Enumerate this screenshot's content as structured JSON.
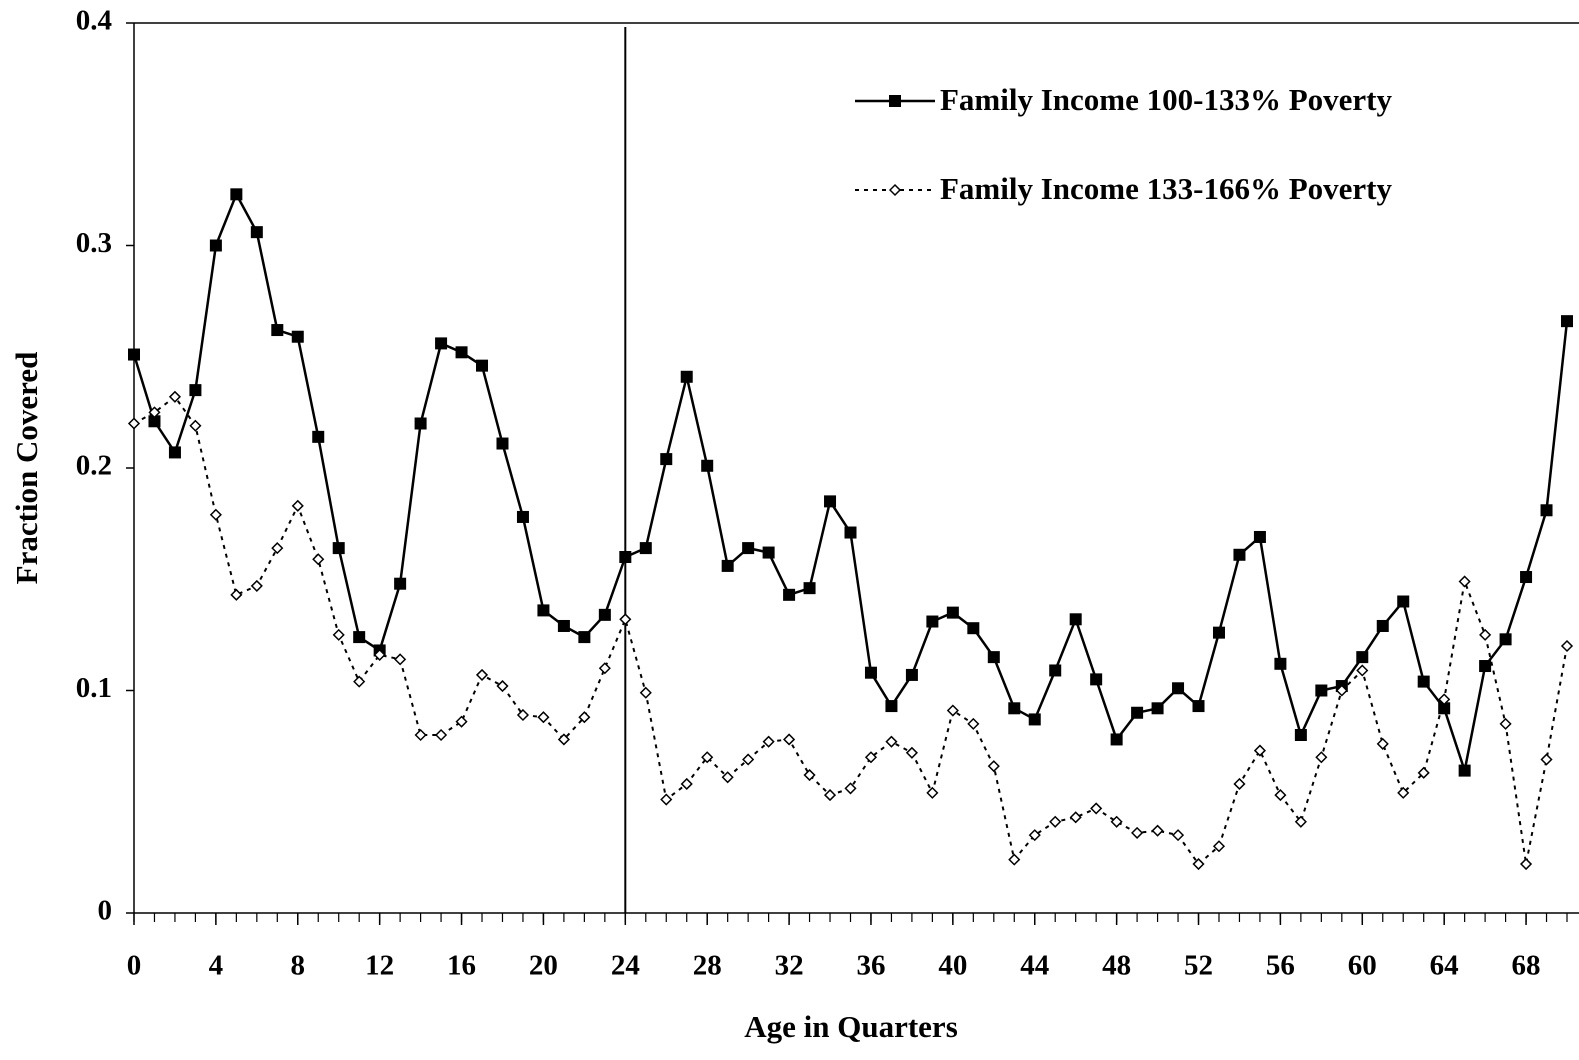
{
  "chart_data": {
    "type": "line",
    "y_label": "Fraction Covered",
    "x_label": "Age in Quarters",
    "x": [
      0,
      1,
      2,
      3,
      4,
      5,
      6,
      7,
      8,
      9,
      10,
      11,
      12,
      13,
      14,
      15,
      16,
      17,
      18,
      19,
      20,
      21,
      22,
      23,
      24,
      25,
      26,
      27,
      28,
      29,
      30,
      31,
      32,
      33,
      34,
      35,
      36,
      37,
      38,
      39,
      40,
      41,
      42,
      43,
      44,
      45,
      46,
      47,
      48,
      49,
      50,
      51,
      52,
      53,
      54,
      55,
      56,
      57,
      58,
      59,
      60,
      61,
      62,
      63,
      64,
      65,
      66,
      67,
      68,
      69,
      70
    ],
    "series": [
      {
        "name": "Family Income 100-133% Poverty",
        "color": "#000000",
        "marker": "square",
        "line": "solid",
        "values": [
          0.251,
          0.221,
          0.207,
          0.235,
          0.3,
          0.323,
          0.306,
          0.262,
          0.259,
          0.214,
          0.164,
          0.124,
          0.118,
          0.148,
          0.22,
          0.256,
          0.252,
          0.246,
          0.211,
          0.178,
          0.136,
          0.129,
          0.124,
          0.134,
          0.16,
          0.164,
          0.204,
          0.241,
          0.201,
          0.156,
          0.164,
          0.162,
          0.143,
          0.146,
          0.185,
          0.171,
          0.108,
          0.093,
          0.107,
          0.131,
          0.135,
          0.128,
          0.115,
          0.092,
          0.087,
          0.109,
          0.132,
          0.105,
          0.078,
          0.09,
          0.092,
          0.101,
          0.093,
          0.126,
          0.161,
          0.169,
          0.112,
          0.08,
          0.1,
          0.102,
          0.115,
          0.129,
          0.14,
          0.104,
          0.092,
          0.064,
          0.111,
          0.123,
          0.151,
          0.181,
          0.266
        ]
      },
      {
        "name": "Family Income 133-166% Poverty",
        "color": "#000000",
        "marker": "diamond",
        "line": "dotted",
        "values": [
          0.22,
          0.225,
          0.232,
          0.219,
          0.179,
          0.143,
          0.147,
          0.164,
          0.183,
          0.159,
          0.125,
          0.104,
          0.116,
          0.114,
          0.08,
          0.08,
          0.086,
          0.107,
          0.102,
          0.089,
          0.088,
          0.078,
          0.088,
          0.11,
          0.132,
          0.099,
          0.051,
          0.058,
          0.07,
          0.061,
          0.069,
          0.077,
          0.078,
          0.062,
          0.053,
          0.056,
          0.07,
          0.077,
          0.072,
          0.054,
          0.091,
          0.085,
          0.066,
          0.024,
          0.035,
          0.041,
          0.043,
          0.047,
          0.041,
          0.036,
          0.037,
          0.035,
          0.022,
          0.03,
          0.058,
          0.073,
          0.053,
          0.041,
          0.07,
          0.1,
          0.109,
          0.076,
          0.054,
          0.063,
          0.096,
          0.149,
          0.125,
          0.085,
          0.022,
          0.069,
          0.12
        ]
      }
    ],
    "xlim": [
      0,
      70
    ],
    "xticks": [
      0,
      4,
      8,
      12,
      16,
      20,
      24,
      28,
      32,
      36,
      40,
      44,
      48,
      52,
      56,
      60,
      64,
      68
    ],
    "ylim": [
      0,
      0.4
    ],
    "yticks": [
      0,
      0.1,
      0.2,
      0.3,
      0.4
    ],
    "vline": 24,
    "legend": "upper right",
    "grid": false
  }
}
